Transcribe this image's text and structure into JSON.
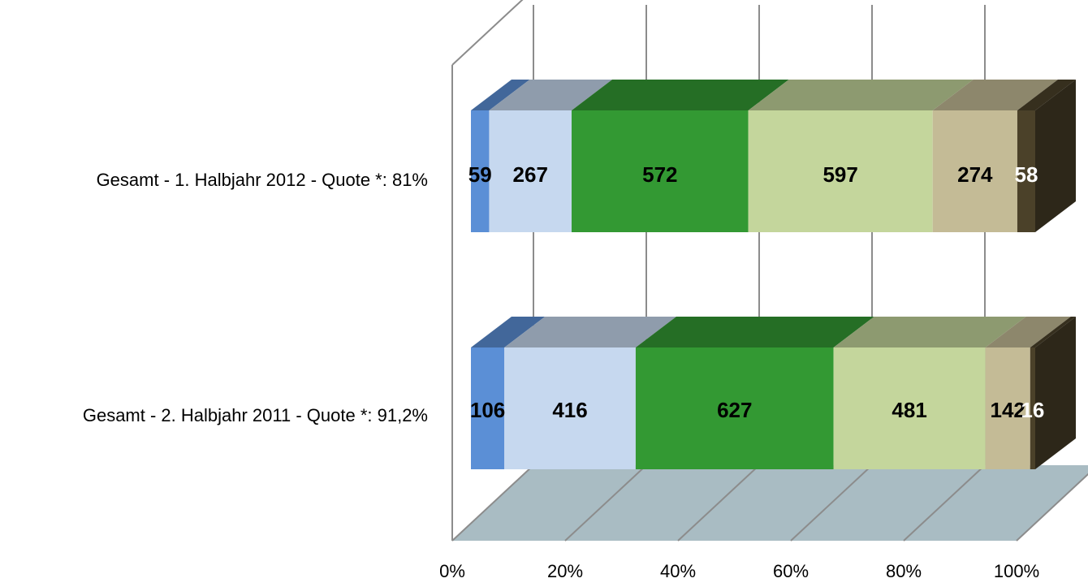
{
  "chart_data": {
    "type": "bar",
    "orientation": "horizontal",
    "stacked": "percent",
    "three_d": true,
    "grid": true,
    "categories": [
      "Gesamt  - 1. Halbjahr 2012 - Quote *: 81%",
      "Gesamt - 2. Halbjahr 2011 - Quote *: 91,2%"
    ],
    "series": [
      {
        "values": [
          59,
          106
        ],
        "color": "#5b8fd6",
        "label_color": "#000000"
      },
      {
        "values": [
          267,
          416
        ],
        "color": "#c6d8ef",
        "label_color": "#000000"
      },
      {
        "values": [
          572,
          627
        ],
        "color": "#339933",
        "label_color": "#000000"
      },
      {
        "values": [
          597,
          481
        ],
        "color": "#c4d69c",
        "label_color": "#000000"
      },
      {
        "values": [
          274,
          142
        ],
        "color": "#c4bb96",
        "label_color": "#000000"
      },
      {
        "values": [
          58,
          16
        ],
        "color": "#4b4129",
        "label_color": "#ffffff"
      }
    ],
    "xlim": [
      0,
      100
    ],
    "x_ticks": [
      "0%",
      "20%",
      "40%",
      "60%",
      "80%",
      "100%"
    ],
    "floor_color": "#a9bcc3"
  }
}
